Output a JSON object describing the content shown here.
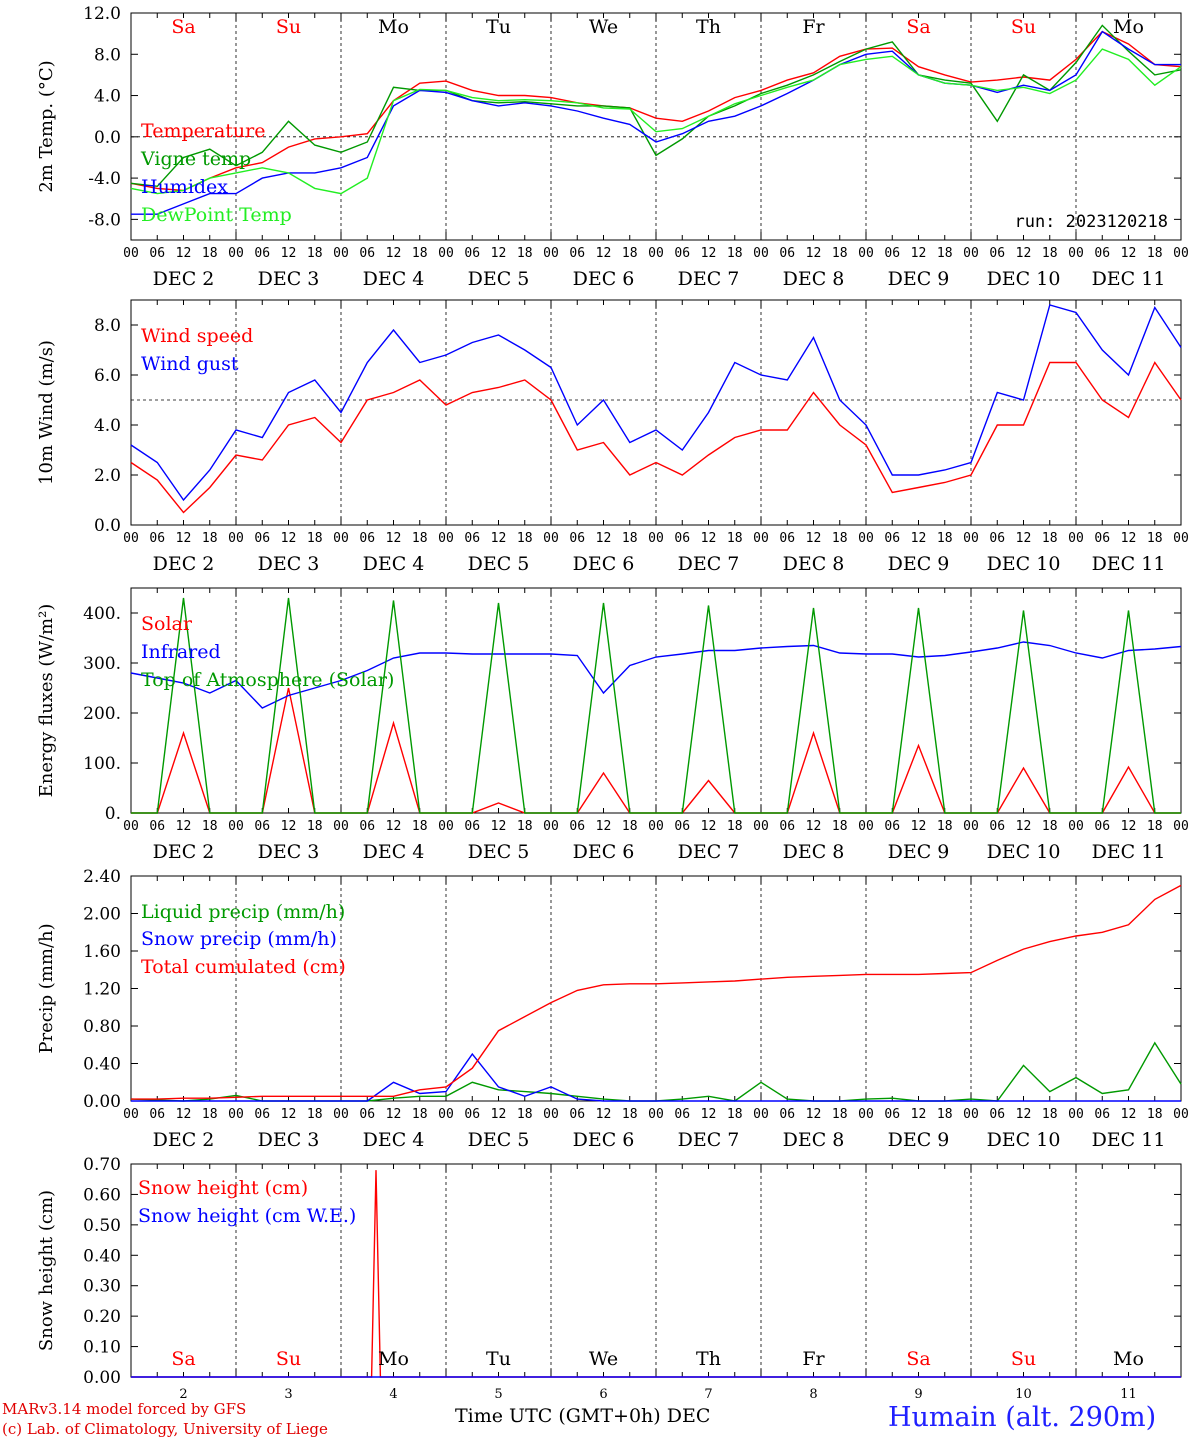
{
  "footer": {
    "credit_line1": "MARv3.14 model forced by GFS",
    "credit_line2": "(c) Lab. of Climatology, University of Liege",
    "xaxis_title": "Time UTC (GMT+0h) DEC",
    "station": "Humain (alt. 290m)"
  },
  "colors": {
    "red": "#ff0000",
    "green": "#009900",
    "blue": "#0000ff",
    "lightgreen": "#22ee22",
    "weekend": "#ff0000"
  },
  "hour_ticks": [
    "00",
    "06",
    "12",
    "18"
  ],
  "day_names": [
    "Sa",
    "Su",
    "Mo",
    "Tu",
    "We",
    "Th",
    "Fr",
    "Sa",
    "Su",
    "Mo"
  ],
  "day_name_colors": [
    "red",
    "red",
    "black",
    "black",
    "black",
    "black",
    "black",
    "red",
    "red",
    "black"
  ],
  "date_labels": [
    "DEC 2",
    "DEC 3",
    "DEC 4",
    "DEC 5",
    "DEC 6",
    "DEC 7",
    "DEC 8",
    "DEC 9",
    "DEC 10",
    "DEC 11"
  ],
  "bottom_day_numbers": [
    "2",
    "3",
    "4",
    "5",
    "6",
    "7",
    "8",
    "9",
    "10",
    "11"
  ],
  "chart_data": [
    {
      "type": "line",
      "ylabel": "2m Temp. (°C)",
      "ylim": [
        -10,
        12
      ],
      "yticks": [
        "-8.0",
        "-4.0",
        "0.0",
        "4.0",
        "8.0",
        "12.0"
      ],
      "ref_line": 0,
      "annotation": "run: 2023120218",
      "x_hours": [
        0,
        6,
        12,
        18,
        24,
        30,
        36,
        42,
        48,
        54,
        60,
        66,
        72,
        78,
        84,
        90,
        96,
        102,
        108,
        114,
        120,
        126,
        132,
        138,
        144,
        150,
        156,
        162,
        168,
        174,
        180,
        186,
        192,
        198,
        204,
        210,
        216,
        222,
        228,
        234,
        240
      ],
      "series": [
        {
          "name": "Temperature",
          "color": "red",
          "values": [
            -4.5,
            -5,
            -5.2,
            -4,
            -3,
            -2.5,
            -1,
            -0.2,
            0,
            0.3,
            3.5,
            5.2,
            5.4,
            4.5,
            4,
            4,
            3.8,
            3.3,
            3,
            2.8,
            1.8,
            1.5,
            2.5,
            3.8,
            4.5,
            5.5,
            6.2,
            7.8,
            8.5,
            8.6,
            6.8,
            6,
            5.3,
            5.5,
            5.8,
            5.5,
            7.5,
            10.2,
            9,
            7,
            6.8
          ]
        },
        {
          "name": "Vigne temp",
          "color": "green",
          "values": [
            -4.5,
            -4.8,
            -2,
            -1.2,
            -2.8,
            -1.5,
            1.5,
            -0.8,
            -1.5,
            -0.5,
            4.8,
            4.5,
            4.5,
            3.5,
            3.3,
            3.4,
            3.2,
            3,
            3,
            2.8,
            -1.8,
            -0.2,
            2,
            3,
            4.2,
            5,
            6,
            7.3,
            8.5,
            9.2,
            6,
            5.5,
            5.2,
            1.5,
            6,
            4.5,
            7.2,
            10.8,
            8.3,
            6,
            6.5
          ]
        },
        {
          "name": "Humidex",
          "color": "blue",
          "values": [
            -7.5,
            -7.5,
            -6.5,
            -5.5,
            -5.5,
            -4,
            -3.5,
            -3.5,
            -3,
            -2,
            3,
            4.5,
            4.3,
            3.5,
            3,
            3.3,
            3,
            2.5,
            1.8,
            1.2,
            -0.5,
            0.3,
            1.5,
            2,
            3,
            4.2,
            5.5,
            7,
            8,
            8.3,
            6,
            5.2,
            5,
            4.3,
            5,
            4.5,
            6,
            10.2,
            8.5,
            7,
            7
          ]
        },
        {
          "name": "DewPoint Temp",
          "color": "lightgreen",
          "values": [
            -5,
            -5.5,
            -5.2,
            -4,
            -3.5,
            -3,
            -3.5,
            -5,
            -5.5,
            -4,
            3.5,
            4.6,
            4.5,
            3.8,
            3.5,
            3.6,
            3.5,
            3.3,
            2.8,
            2.7,
            0.5,
            0.8,
            2,
            3.2,
            4,
            4.8,
            5.5,
            7,
            7.5,
            7.8,
            6,
            5.2,
            5,
            4.5,
            4.8,
            4.2,
            5.5,
            8.5,
            7.5,
            5,
            6.8
          ]
        }
      ]
    },
    {
      "type": "line",
      "ylabel": "10m Wind (m/s)",
      "ylim": [
        0,
        9
      ],
      "yticks": [
        "0.0",
        "2.0",
        "4.0",
        "6.0",
        "8.0"
      ],
      "ref_line": 5,
      "x_hours": [
        0,
        6,
        12,
        18,
        24,
        30,
        36,
        42,
        48,
        54,
        60,
        66,
        72,
        78,
        84,
        90,
        96,
        102,
        108,
        114,
        120,
        126,
        132,
        138,
        144,
        150,
        156,
        162,
        168,
        174,
        180,
        186,
        192,
        198,
        204,
        210,
        216,
        222,
        228,
        234,
        240
      ],
      "series": [
        {
          "name": "Wind speed",
          "color": "red",
          "values": [
            2.5,
            1.8,
            0.5,
            1.5,
            2.8,
            2.6,
            4,
            4.3,
            3.3,
            5,
            5.3,
            5.8,
            4.8,
            5.3,
            5.5,
            5.8,
            5,
            3,
            3.3,
            2,
            2.5,
            2,
            2.8,
            3.5,
            3.8,
            3.8,
            5.3,
            4,
            3.2,
            1.3,
            1.5,
            1.7,
            2,
            4,
            4,
            6.5,
            6.5,
            5,
            4.3,
            6.5,
            5
          ]
        },
        {
          "name": "Wind gust",
          "color": "blue",
          "values": [
            3.2,
            2.5,
            1,
            2.2,
            3.8,
            3.5,
            5.3,
            5.8,
            4.5,
            6.5,
            7.8,
            6.5,
            6.8,
            7.3,
            7.6,
            7,
            6.3,
            4,
            5,
            3.3,
            3.8,
            3,
            4.5,
            6.5,
            6,
            5.8,
            7.5,
            5,
            4,
            2,
            2,
            2.2,
            2.5,
            5.3,
            5,
            8.8,
            8.5,
            7,
            6,
            8.7,
            7.1
          ]
        }
      ]
    },
    {
      "type": "line",
      "ylabel": "Energy fluxes (W/m²)",
      "ylim": [
        0,
        450
      ],
      "yticks": [
        "0.",
        "100.",
        "200.",
        "300.",
        "400."
      ],
      "x_hours": [
        0,
        6,
        12,
        18,
        24,
        30,
        36,
        42,
        48,
        54,
        60,
        66,
        72,
        78,
        84,
        90,
        96,
        102,
        108,
        114,
        120,
        126,
        132,
        138,
        144,
        150,
        156,
        162,
        168,
        174,
        180,
        186,
        192,
        198,
        204,
        210,
        216,
        222,
        228,
        234,
        240
      ],
      "series": [
        {
          "name": "Solar",
          "color": "red",
          "values": [
            0,
            0,
            160,
            0,
            0,
            0,
            250,
            0,
            0,
            0,
            180,
            0,
            0,
            0,
            20,
            0,
            0,
            0,
            80,
            0,
            0,
            0,
            65,
            0,
            0,
            0,
            160,
            0,
            0,
            0,
            135,
            0,
            0,
            0,
            90,
            0,
            0,
            0,
            92,
            0,
            0
          ]
        },
        {
          "name": "Infrared",
          "color": "blue",
          "values": [
            280,
            270,
            260,
            240,
            265,
            210,
            235,
            250,
            265,
            285,
            310,
            320,
            320,
            318,
            318,
            318,
            318,
            315,
            240,
            295,
            312,
            318,
            325,
            325,
            330,
            333,
            335,
            320,
            318,
            318,
            312,
            315,
            322,
            330,
            342,
            335,
            320,
            310,
            325,
            328,
            333
          ]
        },
        {
          "name": "Top of Atmosphere (Solar)",
          "color": "green",
          "values": [
            0,
            0,
            430,
            0,
            0,
            0,
            430,
            0,
            0,
            0,
            425,
            0,
            0,
            0,
            420,
            0,
            0,
            0,
            420,
            0,
            0,
            0,
            415,
            0,
            0,
            0,
            410,
            0,
            0,
            0,
            410,
            0,
            0,
            0,
            405,
            0,
            0,
            0,
            405,
            0,
            0
          ]
        }
      ]
    },
    {
      "type": "line",
      "ylabel": "Precip (mm/h)",
      "ylim": [
        0,
        2.4
      ],
      "yticks": [
        "0.00",
        "0.40",
        "0.80",
        "1.20",
        "1.60",
        "2.00",
        "2.40"
      ],
      "x_hours": [
        0,
        6,
        12,
        18,
        24,
        30,
        36,
        42,
        48,
        54,
        60,
        66,
        72,
        78,
        84,
        90,
        96,
        102,
        108,
        114,
        120,
        126,
        132,
        138,
        144,
        150,
        156,
        162,
        168,
        174,
        180,
        186,
        192,
        198,
        204,
        210,
        216,
        222,
        228,
        234,
        240
      ],
      "series": [
        {
          "name": "Liquid precip (mm/h)",
          "color": "green",
          "values": [
            0.02,
            0.01,
            0,
            0.02,
            0.06,
            0,
            0,
            0,
            0,
            0,
            0.03,
            0.05,
            0.05,
            0.2,
            0.12,
            0.1,
            0.08,
            0.05,
            0.02,
            0,
            0,
            0.02,
            0.05,
            0,
            0.2,
            0.02,
            0,
            0,
            0.02,
            0.03,
            0,
            0,
            0.02,
            0,
            0.38,
            0.1,
            0.25,
            0.08,
            0.12,
            0.62,
            0.18
          ]
        },
        {
          "name": "Snow precip (mm/h)",
          "color": "blue",
          "values": [
            0,
            0,
            0,
            0,
            0,
            0,
            0,
            0,
            0,
            0,
            0.2,
            0.08,
            0.1,
            0.5,
            0.15,
            0.05,
            0.15,
            0.02,
            0,
            0,
            0,
            0,
            0,
            0,
            0,
            0,
            0,
            0,
            0,
            0,
            0,
            0,
            0,
            0,
            0,
            0,
            0,
            0,
            0,
            0,
            0
          ]
        },
        {
          "name": "Total cumulated (cm)",
          "color": "red",
          "values": [
            0.02,
            0.02,
            0.03,
            0.03,
            0.04,
            0.05,
            0.05,
            0.05,
            0.05,
            0.05,
            0.05,
            0.12,
            0.15,
            0.35,
            0.75,
            0.9,
            1.05,
            1.18,
            1.24,
            1.25,
            1.25,
            1.26,
            1.27,
            1.28,
            1.3,
            1.32,
            1.33,
            1.34,
            1.35,
            1.35,
            1.35,
            1.36,
            1.37,
            1.5,
            1.62,
            1.7,
            1.76,
            1.8,
            1.88,
            2.15,
            2.3
          ]
        }
      ]
    },
    {
      "type": "line",
      "ylabel": "Snow height (cm)",
      "ylim": [
        0,
        0.7
      ],
      "yticks": [
        "0.00",
        "0.10",
        "0.20",
        "0.30",
        "0.40",
        "0.50",
        "0.60",
        "0.70"
      ],
      "x_hours": [
        0,
        55,
        56,
        57,
        240
      ],
      "series": [
        {
          "name": "Snow height (cm)",
          "color": "red",
          "values": [
            0,
            0,
            0.68,
            0,
            0
          ]
        },
        {
          "name": "Snow height (cm W.E.)",
          "color": "blue",
          "values": [
            0,
            0,
            0,
            0,
            0
          ]
        }
      ]
    }
  ]
}
